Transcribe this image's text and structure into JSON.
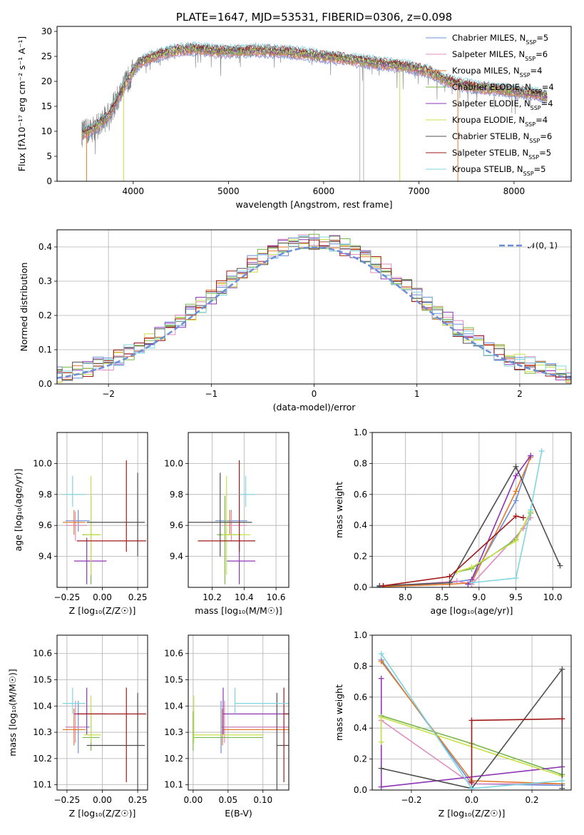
{
  "colors": {
    "Chabrier MILES": "#6a8fd8",
    "Salpeter MILES": "#e08cc0",
    "Kroupa MILES": "#e37b2c",
    "Chabrier ELODIE": "#77b64a",
    "Salpeter ELODIE": "#8e35b5",
    "Kroupa ELODIE": "#c9e04d",
    "Chabrier STELIB": "#4f4f4f",
    "Salpeter STELIB": "#a11a1a",
    "Kroupa STELIB": "#7fd6e0",
    "grid": "#b0b0b0"
  },
  "chart_data": [
    {
      "id": "spectrum",
      "type": "line",
      "title": "PLATE=1647, MJD=53531, FIBERID=0306, z=0.098",
      "xlabel": "wavelength [Angstrom, rest frame]",
      "ylabel": "Flux [fλ10⁻¹⁷ erg cm⁻² s⁻¹ A⁻¹]",
      "xlim": [
        3200,
        8600
      ],
      "ylim": [
        0,
        31
      ],
      "xticks": [
        4000,
        5000,
        6000,
        7000,
        8000
      ],
      "yticks": [
        0,
        5,
        10,
        15,
        20,
        25,
        30
      ],
      "grid": false,
      "legend_position": "top-right",
      "legend": [
        {
          "name": "Chabrier MILES",
          "nssp": "5"
        },
        {
          "name": "Salpeter MILES",
          "nssp": "6"
        },
        {
          "name": "Kroupa MILES",
          "nssp": "4"
        },
        {
          "name": "Chabrier ELODIE",
          "nssp": "4"
        },
        {
          "name": "Salpeter ELODIE",
          "nssp": "4"
        },
        {
          "name": "Kroupa ELODIE",
          "nssp": "4"
        },
        {
          "name": "Chabrier STELIB",
          "nssp": "6"
        },
        {
          "name": "Salpeter STELIB",
          "nssp": "5"
        },
        {
          "name": "Kroupa STELIB",
          "nssp": "5"
        }
      ],
      "continuum": {
        "x": [
          3460,
          3550,
          3650,
          3750,
          3850,
          3950,
          4050,
          4150,
          4300,
          4450,
          4600,
          4750,
          4900,
          5100,
          5300,
          5500,
          5700,
          5900,
          6100,
          6300,
          6500,
          6700,
          6900,
          7100,
          7250,
          7400,
          7600,
          7800,
          8000,
          8200,
          8350
        ],
        "y": [
          9.5,
          10.2,
          11.5,
          13.5,
          17.0,
          20.5,
          23.5,
          24.5,
          25.5,
          26.2,
          26.5,
          26.3,
          26.0,
          26.0,
          26.2,
          26.0,
          25.7,
          25.2,
          24.8,
          24.3,
          23.8,
          23.3,
          22.8,
          22.0,
          20.5,
          19.5,
          18.8,
          18.5,
          18.0,
          17.5,
          17.0
        ]
      },
      "spikes_down": [
        {
          "x": 6380,
          "y": 0
        },
        {
          "x": 6420,
          "y": 0
        },
        {
          "x": 6800,
          "y": 0
        },
        {
          "x": 7410,
          "y": 0
        },
        {
          "x": 3510,
          "y": 0
        },
        {
          "x": 3900,
          "y": 0
        }
      ]
    },
    {
      "id": "residuals",
      "type": "line",
      "xlabel": "(data-model)/error",
      "ylabel": "Normed distribution",
      "xlim": [
        -2.5,
        2.5
      ],
      "ylim": [
        0,
        0.45
      ],
      "xticks": [
        -2,
        -1,
        0,
        1,
        2
      ],
      "yticks": [
        0.0,
        0.1,
        0.2,
        0.3,
        0.4
      ],
      "grid": true,
      "legend_position": "top-right",
      "legend": [
        "𝒩(0, 1)"
      ],
      "bin_width": 0.1
    },
    {
      "id": "age_vs_Z",
      "type": "scatter",
      "xlabel": "Z [log₁₀(Z/Z☉)]",
      "ylabel": "age  [log₁₀(age/yr)]",
      "xlim": [
        -0.32,
        0.32
      ],
      "ylim": [
        9.2,
        10.2
      ],
      "xticks": [
        -0.25,
        0.0,
        0.25
      ],
      "yticks": [
        9.4,
        9.6,
        9.8,
        10.0
      ],
      "grid": true
    },
    {
      "id": "age_vs_mass",
      "type": "scatter",
      "xlabel": "mass [log₁₀(M/M☉)]",
      "xlim": [
        10.05,
        10.68
      ],
      "ylim": [
        9.2,
        10.2
      ],
      "xticks": [
        10.2,
        10.4,
        10.6
      ],
      "yticks": [
        9.4,
        9.6,
        9.8,
        10.0
      ],
      "grid": true
    },
    {
      "id": "mass_weight_vs_age",
      "type": "line",
      "xlabel": "age  [log₁₀(age/yr)]",
      "ylabel": "mass weight",
      "xlim": [
        7.55,
        10.25
      ],
      "ylim": [
        0,
        1
      ],
      "xticks": [
        8.0,
        8.5,
        9.0,
        9.5,
        10.0
      ],
      "yticks": [
        0.0,
        0.2,
        0.4,
        0.6,
        0.8,
        1.0
      ],
      "grid": true
    },
    {
      "id": "mass_vs_Z",
      "type": "scatter",
      "xlabel": "Z [log₁₀(Z/Z☉)]",
      "ylabel": "mass [log₁₀(M/M☉)]",
      "xlim": [
        -0.32,
        0.32
      ],
      "ylim": [
        10.08,
        10.67
      ],
      "xticks": [
        -0.25,
        0.0,
        0.25
      ],
      "yticks": [
        10.1,
        10.2,
        10.3,
        10.4,
        10.5,
        10.6
      ],
      "grid": true
    },
    {
      "id": "mass_vs_ebv",
      "type": "scatter",
      "xlabel": "E(B-V)",
      "xlim": [
        -0.007,
        0.137
      ],
      "ylim": [
        10.08,
        10.67
      ],
      "xticks": [
        0.0,
        0.05,
        0.1
      ],
      "yticks": [
        10.1,
        10.2,
        10.3,
        10.4,
        10.5,
        10.6
      ],
      "grid": true
    },
    {
      "id": "mass_weight_vs_Z",
      "type": "line",
      "xlabel": "Z [log₁₀(Z/Z☉)]",
      "ylabel": "mass weight",
      "xlim": [
        -0.33,
        0.33
      ],
      "ylim": [
        0,
        1
      ],
      "xticks": [
        -0.2,
        0.0,
        0.2
      ],
      "yticks": [
        0.0,
        0.2,
        0.4,
        0.6,
        0.8,
        1.0
      ],
      "grid": true
    }
  ],
  "fits": [
    {
      "name": "Chabrier MILES",
      "Z": -0.17,
      "Zerr": [
        0.09,
        0.08
      ],
      "age": 9.63,
      "ageErr": [
        0.07,
        0.07
      ],
      "mass": 10.32,
      "massErr": [
        0.1,
        0.1
      ],
      "ebv": 0.04,
      "ebvErr": [
        0.0,
        0.1
      ],
      "aw": [
        [
          7.65,
          0.005
        ],
        [
          8.6,
          0.03
        ],
        [
          8.9,
          0.05
        ],
        [
          9.5,
          0.56
        ],
        [
          9.7,
          0.85
        ]
      ],
      "zw": [
        [
          -0.3,
          0.84
        ],
        [
          0.0,
          0.04
        ],
        [
          0.3,
          0.03
        ]
      ]
    },
    {
      "name": "Salpeter MILES",
      "Z": -0.19,
      "Zerr": [
        0.07,
        0.08
      ],
      "age": 9.6,
      "ageErr": [
        0.1,
        0.09
      ],
      "mass": 10.32,
      "massErr": [
        0.06,
        0.1
      ],
      "ebv": 0.045,
      "ebvErr": [
        0.0,
        0.1
      ],
      "aw": [
        [
          7.7,
          0.005
        ],
        [
          8.7,
          0.04
        ],
        [
          8.9,
          0.02
        ],
        [
          9.6,
          0.38
        ],
        [
          9.7,
          0.45
        ]
      ],
      "zw": [
        [
          -0.3,
          0.45
        ],
        [
          0.0,
          0.04
        ],
        [
          0.3,
          0.04
        ]
      ]
    },
    {
      "name": "Kroupa MILES",
      "Z": -0.2,
      "Zerr": [
        0.08,
        0.08
      ],
      "age": 9.62,
      "ageErr": [
        0.08,
        0.08
      ],
      "mass": 10.31,
      "massErr": [
        0.06,
        0.08
      ],
      "ebv": 0.042,
      "ebvErr": [
        0.0,
        0.1
      ],
      "aw": [
        [
          7.7,
          0.005
        ],
        [
          8.6,
          0.02
        ],
        [
          8.9,
          0.03
        ],
        [
          9.5,
          0.62
        ],
        [
          9.7,
          0.84
        ]
      ],
      "zw": [
        [
          -0.3,
          0.83
        ],
        [
          0.0,
          0.06
        ],
        [
          0.3,
          0.04
        ]
      ]
    },
    {
      "name": "Chabrier ELODIE",
      "Z": -0.08,
      "Zerr": [
        0.06,
        0.06
      ],
      "age": 9.54,
      "ageErr": [
        0.32,
        0.25
      ],
      "mass": 10.28,
      "massErr": [
        0.05,
        0.1
      ],
      "ebv": 0.0,
      "ebvErr": [
        0.0,
        0.1
      ],
      "aw": [
        [
          8.7,
          0.1
        ],
        [
          8.9,
          0.12
        ],
        [
          9.5,
          0.31
        ],
        [
          9.7,
          0.48
        ]
      ],
      "zw": [
        [
          -0.3,
          0.48
        ],
        [
          0.0,
          0.3
        ],
        [
          0.3,
          0.1
        ]
      ]
    },
    {
      "name": "Salpeter ELODIE",
      "Z": -0.11,
      "Zerr": [
        0.09,
        0.14
      ],
      "age": 9.37,
      "ageErr": [
        0.15,
        0.15
      ],
      "mass": 10.37,
      "massErr": [
        0.08,
        0.1
      ],
      "ebv": 0.043,
      "ebvErr": [
        0.0,
        0.1
      ],
      "aw": [
        [
          8.85,
          0.02
        ],
        [
          8.9,
          0.05
        ],
        [
          9.5,
          0.72
        ],
        [
          9.7,
          0.85
        ]
      ],
      "zw": [
        [
          -0.3,
          0.72
        ],
        [
          -0.3,
          0.02
        ],
        [
          0.3,
          0.15
        ]
      ]
    },
    {
      "name": "Kroupa ELODIE",
      "Z": -0.08,
      "Zerr": [
        0.05,
        0.07
      ],
      "age": 9.54,
      "ageErr": [
        0.26,
        0.38
      ],
      "mass": 10.29,
      "massErr": [
        0.03,
        0.15
      ],
      "ebv": 0.001,
      "ebvErr": [
        0.0,
        0.1
      ],
      "aw": [
        [
          8.7,
          0.1
        ],
        [
          8.9,
          0.13
        ],
        [
          9.5,
          0.3
        ],
        [
          9.7,
          0.49
        ]
      ],
      "zw": [
        [
          -0.3,
          0.31
        ],
        [
          -0.3,
          0.47
        ],
        [
          0.3,
          0.09
        ]
      ]
    },
    {
      "name": "Chabrier STELIB",
      "Z": 0.25,
      "Zerr": [
        0.36,
        0.05
      ],
      "age": 9.62,
      "ageErr": [
        0.22,
        0.32
      ],
      "mass": 10.25,
      "massErr": [
        0.26,
        0.2
      ],
      "ebv": 0.12,
      "ebvErr": [
        0.0,
        0.1
      ],
      "aw": [
        [
          7.65,
          0.01
        ],
        [
          8.6,
          0.03
        ],
        [
          9.5,
          0.78
        ],
        [
          10.1,
          0.14
        ]
      ],
      "zw": [
        [
          -0.3,
          0.14
        ],
        [
          0.0,
          0.01
        ],
        [
          0.3,
          0.78
        ],
        [
          0.3,
          0.01
        ]
      ]
    },
    {
      "name": "Salpeter STELIB",
      "Z": 0.17,
      "Zerr": [
        0.35,
        0.14
      ],
      "age": 9.5,
      "ageErr": [
        0.07,
        0.52
      ],
      "mass": 10.37,
      "massErr": [
        0.26,
        0.1
      ],
      "ebv": 0.13,
      "ebvErr": [
        0.0,
        0.1
      ],
      "aw": [
        [
          7.7,
          0.01
        ],
        [
          8.6,
          0.07
        ],
        [
          9.5,
          0.46
        ],
        [
          9.6,
          0.45
        ]
      ],
      "zw": [
        [
          0.0,
          0.05
        ],
        [
          0.0,
          0.45
        ],
        [
          0.3,
          0.46
        ]
      ]
    },
    {
      "name": "Kroupa STELIB",
      "Z": -0.21,
      "Zerr": [
        0.07,
        0.09
      ],
      "age": 9.8,
      "ageErr": [
        0.08,
        0.12
      ],
      "mass": 10.41,
      "massErr": [
        0.04,
        0.06
      ],
      "ebv": 0.06,
      "ebvErr": [
        0.0,
        0.1
      ],
      "aw": [
        [
          8.9,
          0.03
        ],
        [
          9.5,
          0.06
        ],
        [
          9.7,
          0.5
        ],
        [
          9.85,
          0.88
        ]
      ],
      "zw": [
        [
          -0.3,
          0.88
        ],
        [
          0.0,
          0.01
        ],
        [
          0.3,
          0.06
        ]
      ]
    }
  ]
}
